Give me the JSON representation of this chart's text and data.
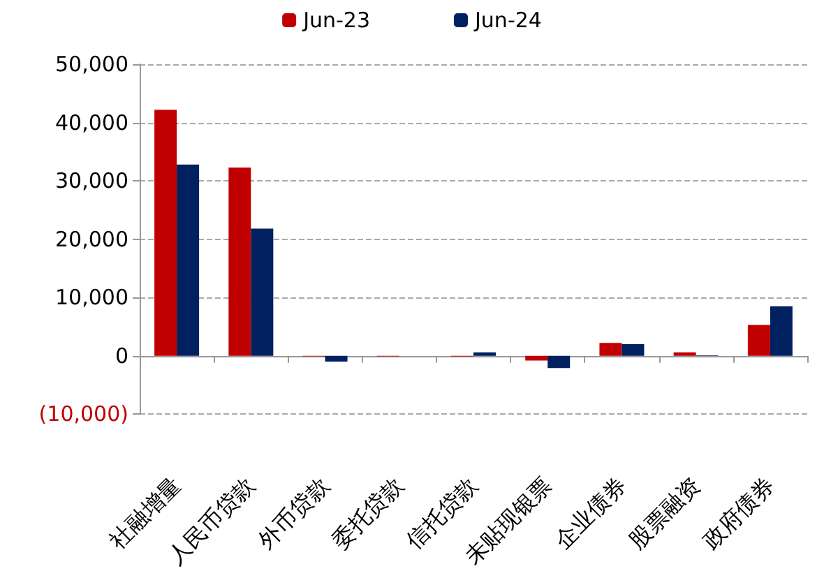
{
  "chart_data": {
    "type": "bar",
    "categories": [
      "社融增量",
      "人民币贷款",
      "外币贷款",
      "委托贷款",
      "信托贷款",
      "未贴现银票",
      "企业债券",
      "股票融资",
      "政府债券"
    ],
    "series": [
      {
        "name": "Jun-23",
        "color": "#c00000",
        "values": [
          42200,
          32300,
          -100,
          -100,
          -100,
          -800,
          2200,
          600,
          5300
        ]
      },
      {
        "name": "Jun-24",
        "color": "#002060",
        "values": [
          32800,
          21800,
          -1000,
          0,
          600,
          -2100,
          2000,
          100,
          8500
        ]
      }
    ],
    "ylim": [
      -10000,
      50000
    ],
    "yticks": [
      {
        "value": -10000,
        "label": "(10,000)"
      },
      {
        "value": 0,
        "label": "0"
      },
      {
        "value": 10000,
        "label": "10,000"
      },
      {
        "value": 20000,
        "label": "20,000"
      },
      {
        "value": 30000,
        "label": "30,000"
      },
      {
        "value": 40000,
        "label": "40,000"
      },
      {
        "value": 50000,
        "label": "50,000"
      }
    ],
    "grid": "y",
    "legend": "top"
  }
}
